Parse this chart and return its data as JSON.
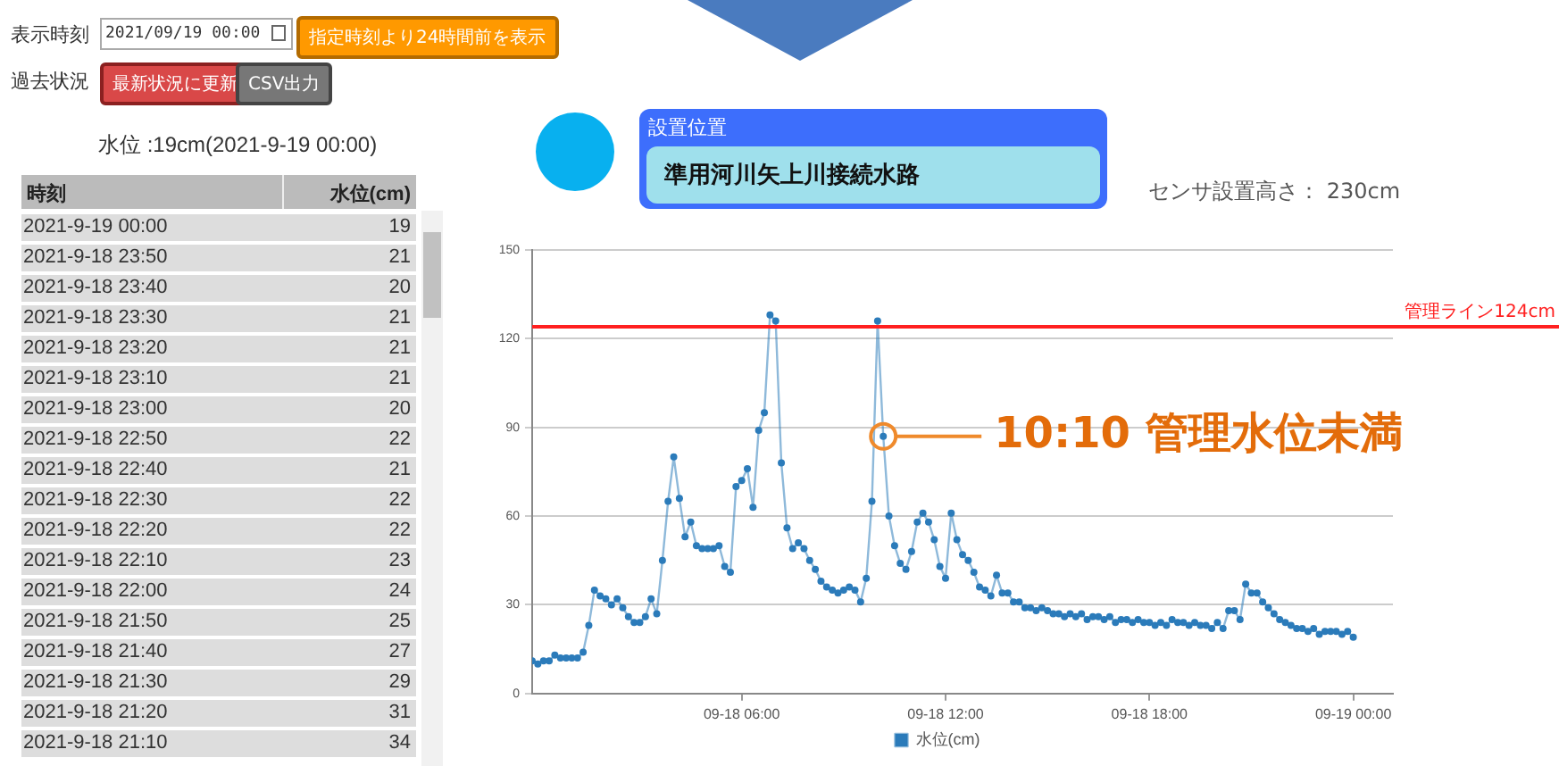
{
  "chart_data": [
    {
      "type": "other",
      "title": "水位 :19cm(2021-9-19 00:00)",
      "xlabel": "時刻",
      "ylabel": "水位(cm)",
      "categories": [
        "2021-9-19 00:00",
        "2021-9-18 23:50",
        "2021-9-18 23:40",
        "2021-9-18 23:30",
        "2021-9-18 23:20",
        "2021-9-18 23:10",
        "2021-9-18 23:00",
        "2021-9-18 22:50",
        "2021-9-18 22:40",
        "2021-9-18 22:30",
        "2021-9-18 22:20",
        "2021-9-18 22:10",
        "2021-9-18 22:00",
        "2021-9-18 21:50",
        "2021-9-18 21:40",
        "2021-9-18 21:30",
        "2021-9-18 21:20",
        "2021-9-18 21:10"
      ],
      "values": [
        19,
        21,
        20,
        21,
        21,
        21,
        20,
        22,
        21,
        22,
        22,
        23,
        24,
        25,
        27,
        29,
        31,
        34
      ],
      "data_labels": true,
      "annotations": [
        "表示時刻",
        "2021/09/19 00:00",
        "指定時刻より24時間前を表示",
        "過去状況",
        "最新状況に更新",
        "CSV出力",
        "設置位置",
        "準用河川矢上川接続水路",
        "センサ設置高さ： 230cm"
      ]
    },
    {
      "type": "line",
      "x": [
        "2021-09-17T23:50",
        "2021-09-18T00:00",
        "2021-09-18T00:10",
        "2021-09-18T00:20",
        "2021-09-18T00:30",
        "2021-09-18T00:40",
        "2021-09-18T00:50",
        "2021-09-18T01:00",
        "2021-09-18T01:10",
        "2021-09-18T01:20",
        "2021-09-18T01:30",
        "2021-09-18T01:40",
        "2021-09-18T01:50",
        "2021-09-18T02:00",
        "2021-09-18T02:10",
        "2021-09-18T02:20",
        "2021-09-18T02:30",
        "2021-09-18T02:40",
        "2021-09-18T02:50",
        "2021-09-18T03:00",
        "2021-09-18T03:10",
        "2021-09-18T03:20",
        "2021-09-18T03:30",
        "2021-09-18T03:40",
        "2021-09-18T03:50",
        "2021-09-18T04:00",
        "2021-09-18T04:10",
        "2021-09-18T04:20",
        "2021-09-18T04:30",
        "2021-09-18T04:40",
        "2021-09-18T04:50",
        "2021-09-18T05:00",
        "2021-09-18T05:10",
        "2021-09-18T05:20",
        "2021-09-18T05:30",
        "2021-09-18T05:40",
        "2021-09-18T05:50",
        "2021-09-18T06:00",
        "2021-09-18T06:10",
        "2021-09-18T06:20",
        "2021-09-18T06:30",
        "2021-09-18T06:40",
        "2021-09-18T06:50",
        "2021-09-18T07:00",
        "2021-09-18T07:10",
        "2021-09-18T07:20",
        "2021-09-18T07:30",
        "2021-09-18T07:40",
        "2021-09-18T07:50",
        "2021-09-18T08:00",
        "2021-09-18T08:10",
        "2021-09-18T08:20",
        "2021-09-18T08:30",
        "2021-09-18T08:40",
        "2021-09-18T08:50",
        "2021-09-18T09:00",
        "2021-09-18T09:10",
        "2021-09-18T09:20",
        "2021-09-18T09:30",
        "2021-09-18T09:40",
        "2021-09-18T09:50",
        "2021-09-18T10:00",
        "2021-09-18T10:10",
        "2021-09-18T10:20",
        "2021-09-18T10:30",
        "2021-09-18T10:40",
        "2021-09-18T10:50",
        "2021-09-18T11:00",
        "2021-09-18T11:10",
        "2021-09-18T11:20",
        "2021-09-18T11:30",
        "2021-09-18T11:40",
        "2021-09-18T11:50",
        "2021-09-18T12:00",
        "2021-09-18T12:10",
        "2021-09-18T12:20",
        "2021-09-18T12:30",
        "2021-09-18T12:40",
        "2021-09-18T12:50",
        "2021-09-18T13:00",
        "2021-09-18T13:10",
        "2021-09-18T13:20",
        "2021-09-18T13:30",
        "2021-09-18T13:40",
        "2021-09-18T13:50",
        "2021-09-18T14:00",
        "2021-09-18T14:10",
        "2021-09-18T14:20",
        "2021-09-18T14:30",
        "2021-09-18T14:40",
        "2021-09-18T14:50",
        "2021-09-18T15:00",
        "2021-09-18T15:10",
        "2021-09-18T15:20",
        "2021-09-18T15:30",
        "2021-09-18T15:40",
        "2021-09-18T15:50",
        "2021-09-18T16:00",
        "2021-09-18T16:10",
        "2021-09-18T16:20",
        "2021-09-18T16:30",
        "2021-09-18T16:40",
        "2021-09-18T16:50",
        "2021-09-18T17:00",
        "2021-09-18T17:10",
        "2021-09-18T17:20",
        "2021-09-18T17:30",
        "2021-09-18T17:40",
        "2021-09-18T17:50",
        "2021-09-18T18:00",
        "2021-09-18T18:10",
        "2021-09-18T18:20",
        "2021-09-18T18:30",
        "2021-09-18T18:40",
        "2021-09-18T18:50",
        "2021-09-18T19:00",
        "2021-09-18T19:10",
        "2021-09-18T19:20",
        "2021-09-18T19:30",
        "2021-09-18T19:40",
        "2021-09-18T19:50",
        "2021-09-18T20:00",
        "2021-09-18T20:10",
        "2021-09-18T20:20",
        "2021-09-18T20:30",
        "2021-09-18T20:40",
        "2021-09-18T20:50",
        "2021-09-18T21:00",
        "2021-09-18T21:10",
        "2021-09-18T21:20",
        "2021-09-18T21:30",
        "2021-09-18T21:40",
        "2021-09-18T21:50",
        "2021-09-18T22:00",
        "2021-09-18T22:10",
        "2021-09-18T22:20",
        "2021-09-18T22:30",
        "2021-09-18T22:40",
        "2021-09-18T22:50",
        "2021-09-18T23:00",
        "2021-09-18T23:10",
        "2021-09-18T23:20",
        "2021-09-18T23:30",
        "2021-09-18T23:40",
        "2021-09-18T23:50",
        "2021-09-19T00:00"
      ],
      "series": [
        {
          "name": "水位(cm)",
          "color": "#2b7bba",
          "values": [
            11,
            10,
            11,
            11,
            13,
            12,
            12,
            12,
            12,
            14,
            23,
            35,
            33,
            32,
            30,
            32,
            29,
            26,
            24,
            24,
            26,
            32,
            27,
            45,
            65,
            80,
            66,
            53,
            58,
            50,
            49,
            49,
            49,
            50,
            43,
            41,
            70,
            72,
            76,
            63,
            89,
            95,
            128,
            126,
            78,
            56,
            49,
            51,
            49,
            45,
            42,
            38,
            36,
            35,
            34,
            35,
            36,
            35,
            31,
            39,
            65,
            126,
            87,
            60,
            50,
            44,
            42,
            48,
            58,
            61,
            58,
            52,
            43,
            39,
            61,
            52,
            47,
            45,
            41,
            36,
            35,
            33,
            40,
            34,
            34,
            31,
            31,
            29,
            29,
            28,
            29,
            28,
            27,
            27,
            26,
            27,
            26,
            27,
            25,
            26,
            26,
            25,
            26,
            24,
            25,
            25,
            24,
            25,
            24,
            24,
            23,
            24,
            23,
            25,
            24,
            24,
            23,
            24,
            23,
            23,
            22,
            24,
            22,
            28,
            28,
            25,
            37,
            34,
            34,
            31,
            29,
            27,
            25,
            24,
            23,
            22,
            22,
            21,
            22,
            20,
            21,
            21,
            21,
            20,
            21,
            19
          ]
        }
      ],
      "xlim": [
        "2021-09-17T23:50",
        "2021-09-19T01:10"
      ],
      "xticks": [
        {
          "value": "2021-09-18T06:00",
          "label": "09-18 06:00"
        },
        {
          "value": "2021-09-18T12:00",
          "label": "09-18 12:00"
        },
        {
          "value": "2021-09-18T18:00",
          "label": "09-18 18:00"
        },
        {
          "value": "2021-09-19T00:00",
          "label": "09-19 00:00"
        }
      ],
      "ylim": [
        0,
        150
      ],
      "yticks": [
        0,
        30,
        60,
        90,
        120,
        150
      ],
      "grid": "y",
      "legend": "bottom",
      "marker": "circle",
      "ref_lines": [
        {
          "axis": "y",
          "value": 124,
          "label": "管理ライン124cm",
          "color": "#ff2020"
        }
      ],
      "annotations": [
        {
          "text": "10:10 管理水位未満",
          "x": "2021-09-18T10:10",
          "y": 87
        }
      ]
    }
  ]
}
